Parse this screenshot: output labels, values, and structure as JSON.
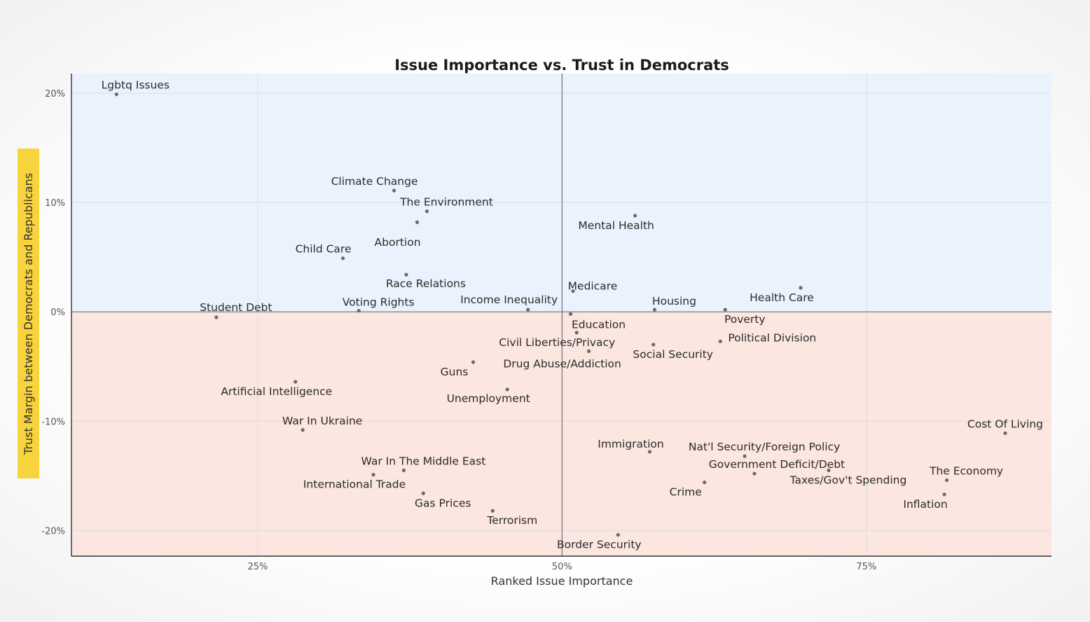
{
  "chart_data": {
    "type": "scatter",
    "title": "Issue Importance vs. Trust in Democrats",
    "xlabel": "Ranked Issue Importance",
    "ylabel": "Trust Margin between Democrats and Republicans",
    "xlim": [
      0.097,
      0.902
    ],
    "ylim": [
      -0.2235,
      0.218
    ],
    "xticks": [
      {
        "value": 0.25,
        "label": "25%"
      },
      {
        "value": 0.5,
        "label": "50%"
      },
      {
        "value": 0.75,
        "label": "75%"
      }
    ],
    "yticks": [
      {
        "value": 0.2,
        "label": "20%"
      },
      {
        "value": 0.1,
        "label": "10%"
      },
      {
        "value": 0,
        "label": "0%"
      },
      {
        "value": -0.1,
        "label": "-10%"
      },
      {
        "value": -0.2,
        "label": "-20%"
      }
    ],
    "grid": true,
    "colors": {
      "positive_region": "#eaf3fd",
      "negative_region": "#fbe6e0",
      "point": "#6b6b6b",
      "ylabel_highlight": "#f7d33c"
    },
    "points": [
      {
        "label": "Lgbtq Issues",
        "x": 0.134,
        "y": 0.199
      },
      {
        "label": "Climate Change",
        "x": 0.362,
        "y": 0.111
      },
      {
        "label": "The Environment",
        "x": 0.389,
        "y": 0.092
      },
      {
        "label": "Abortion",
        "x": 0.381,
        "y": 0.082
      },
      {
        "label": "Child Care",
        "x": 0.32,
        "y": 0.049
      },
      {
        "label": "Race Relations",
        "x": 0.372,
        "y": 0.034
      },
      {
        "label": "Mental Health",
        "x": 0.56,
        "y": 0.088
      },
      {
        "label": "Medicare",
        "x": 0.509,
        "y": 0.019
      },
      {
        "label": "Health Care",
        "x": 0.696,
        "y": 0.022
      },
      {
        "label": "Student Debt",
        "x": 0.216,
        "y": -0.005
      },
      {
        "label": "Voting Rights",
        "x": 0.333,
        "y": 0.001
      },
      {
        "label": "Income Inequality",
        "x": 0.472,
        "y": 0.002
      },
      {
        "label": "Housing",
        "x": 0.576,
        "y": 0.002
      },
      {
        "label": "Poverty",
        "x": 0.634,
        "y": 0.002
      },
      {
        "label": "Education",
        "x": 0.507,
        "y": -0.002
      },
      {
        "label": "Civil Liberties/Privacy",
        "x": 0.512,
        "y": -0.019
      },
      {
        "label": "Political Division",
        "x": 0.63,
        "y": -0.027
      },
      {
        "label": "Social Security",
        "x": 0.575,
        "y": -0.03
      },
      {
        "label": "Drug Abuse/Addiction",
        "x": 0.522,
        "y": -0.036
      },
      {
        "label": "Guns",
        "x": 0.427,
        "y": -0.046
      },
      {
        "label": "Artificial Intelligence",
        "x": 0.281,
        "y": -0.064
      },
      {
        "label": "Unemployment",
        "x": 0.455,
        "y": -0.071
      },
      {
        "label": "War In Ukraine",
        "x": 0.287,
        "y": -0.108
      },
      {
        "label": "Cost Of Living",
        "x": 0.864,
        "y": -0.111
      },
      {
        "label": "Immigration",
        "x": 0.572,
        "y": -0.128
      },
      {
        "label": "Nat'l Security/Foreign Policy",
        "x": 0.65,
        "y": -0.132
      },
      {
        "label": "Government Deficit/Debt",
        "x": 0.658,
        "y": -0.148
      },
      {
        "label": "War In The Middle East",
        "x": 0.37,
        "y": -0.145
      },
      {
        "label": "Taxes/Gov't Spending",
        "x": 0.719,
        "y": -0.145
      },
      {
        "label": "International Trade",
        "x": 0.345,
        "y": -0.149
      },
      {
        "label": "The Economy",
        "x": 0.816,
        "y": -0.154
      },
      {
        "label": "Crime",
        "x": 0.617,
        "y": -0.156
      },
      {
        "label": "Gas Prices",
        "x": 0.386,
        "y": -0.166
      },
      {
        "label": "Inflation",
        "x": 0.814,
        "y": -0.167
      },
      {
        "label": "Terrorism",
        "x": 0.443,
        "y": -0.182
      },
      {
        "label": "Border Security",
        "x": 0.546,
        "y": -0.204
      }
    ]
  }
}
